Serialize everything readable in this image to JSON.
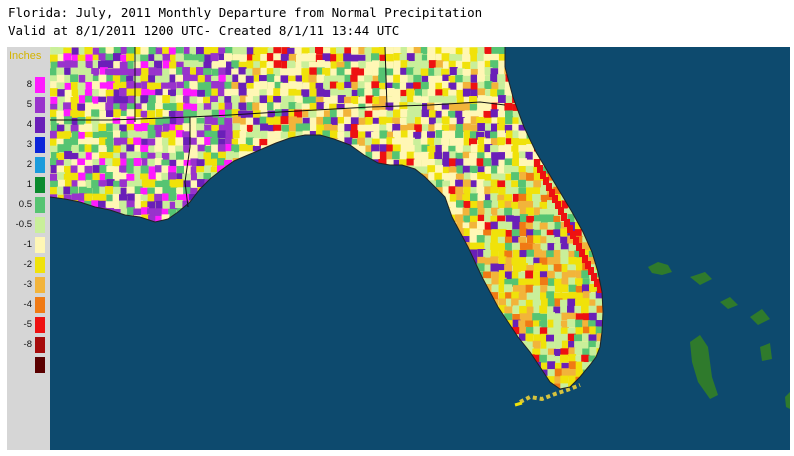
{
  "header": {
    "title": "Florida: July, 2011 Monthly Departure from Normal Precipitation",
    "subtitle": "Valid at 8/1/2011 1200 UTC- Created 8/1/11 13:44 UTC"
  },
  "legend": {
    "unit": "Inches",
    "items": [
      {
        "label": "8",
        "color": "#ff1aff"
      },
      {
        "label": "5",
        "color": "#9933cc"
      },
      {
        "label": "4",
        "color": "#6a1fb8"
      },
      {
        "label": "3",
        "color": "#0b24d9"
      },
      {
        "label": "2",
        "color": "#1a9bdc"
      },
      {
        "label": "1",
        "color": "#0b8a2e"
      },
      {
        "label": "0.5",
        "color": "#56c472"
      },
      {
        "label": "-0.5",
        "color": "#c9ef9a"
      },
      {
        "label": "-1",
        "color": "#fff7b5"
      },
      {
        "label": "-2",
        "color": "#f0e20a"
      },
      {
        "label": "-3",
        "color": "#f2b43a"
      },
      {
        "label": "-4",
        "color": "#f07a14"
      },
      {
        "label": "-5",
        "color": "#ee1111"
      },
      {
        "label": "-8",
        "color": "#a60b0b"
      },
      {
        "label": "",
        "color": "#5a0000"
      }
    ]
  },
  "colors": {
    "water": "#0d4a6e",
    "frame_bg": "#d6d6d6",
    "bahamas": "#2f7a2c"
  }
}
